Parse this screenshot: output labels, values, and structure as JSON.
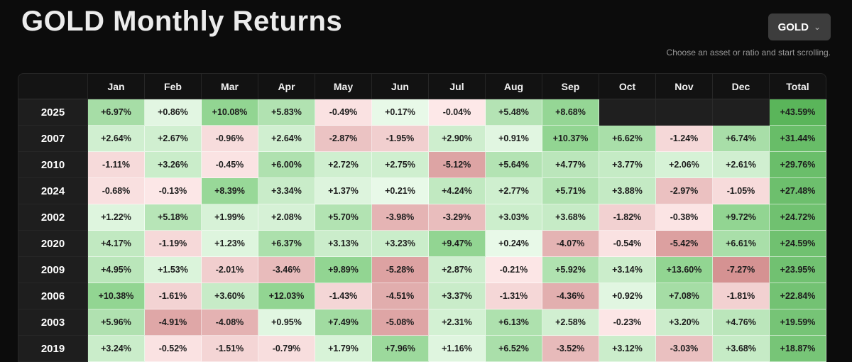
{
  "header": {
    "title": "GOLD Monthly Returns",
    "asset_selector": {
      "label": "GOLD",
      "chevron": "⌄"
    },
    "hint": "Choose an asset or ratio and start scrolling."
  },
  "table": {
    "columns": [
      "Jan",
      "Feb",
      "Mar",
      "Apr",
      "May",
      "Jun",
      "Jul",
      "Aug",
      "Sep",
      "Oct",
      "Nov",
      "Dec",
      "Total"
    ],
    "rows": [
      {
        "year": "2025",
        "cells": [
          "+6.97%",
          "+0.86%",
          "+10.08%",
          "+5.83%",
          "-0.49%",
          "+0.17%",
          "-0.04%",
          "+5.48%",
          "+8.68%",
          "",
          "",
          "",
          "+43.59%"
        ]
      },
      {
        "year": "2007",
        "cells": [
          "+2.64%",
          "+2.67%",
          "-0.96%",
          "+2.64%",
          "-2.87%",
          "-1.95%",
          "+2.90%",
          "+0.91%",
          "+10.37%",
          "+6.62%",
          "-1.24%",
          "+6.74%",
          "+31.44%"
        ]
      },
      {
        "year": "2010",
        "cells": [
          "-1.11%",
          "+3.26%",
          "-0.45%",
          "+6.00%",
          "+2.72%",
          "+2.75%",
          "-5.12%",
          "+5.64%",
          "+4.77%",
          "+3.77%",
          "+2.06%",
          "+2.61%",
          "+29.76%"
        ]
      },
      {
        "year": "2024",
        "cells": [
          "-0.68%",
          "-0.13%",
          "+8.39%",
          "+3.34%",
          "+1.37%",
          "+0.21%",
          "+4.24%",
          "+2.77%",
          "+5.71%",
          "+3.88%",
          "-2.97%",
          "-1.05%",
          "+27.48%"
        ]
      },
      {
        "year": "2002",
        "cells": [
          "+1.22%",
          "+5.18%",
          "+1.99%",
          "+2.08%",
          "+5.70%",
          "-3.98%",
          "-3.29%",
          "+3.03%",
          "+3.68%",
          "-1.82%",
          "-0.38%",
          "+9.72%",
          "+24.72%"
        ]
      },
      {
        "year": "2020",
        "cells": [
          "+4.17%",
          "-1.19%",
          "+1.23%",
          "+6.37%",
          "+3.13%",
          "+3.23%",
          "+9.47%",
          "+0.24%",
          "-4.07%",
          "-0.54%",
          "-5.42%",
          "+6.61%",
          "+24.59%"
        ]
      },
      {
        "year": "2009",
        "cells": [
          "+4.95%",
          "+1.53%",
          "-2.01%",
          "-3.46%",
          "+9.89%",
          "-5.28%",
          "+2.87%",
          "-0.21%",
          "+5.92%",
          "+3.14%",
          "+13.60%",
          "-7.27%",
          "+23.95%"
        ]
      },
      {
        "year": "2006",
        "cells": [
          "+10.38%",
          "-1.61%",
          "+3.60%",
          "+12.03%",
          "-1.43%",
          "-4.51%",
          "+3.37%",
          "-1.31%",
          "-4.36%",
          "+0.92%",
          "+7.08%",
          "-1.81%",
          "+22.84%"
        ]
      },
      {
        "year": "2003",
        "cells": [
          "+5.96%",
          "-4.91%",
          "-4.08%",
          "+0.95%",
          "+7.49%",
          "-5.08%",
          "+2.31%",
          "+6.13%",
          "+2.58%",
          "-0.23%",
          "+3.20%",
          "+4.76%",
          "+19.59%"
        ]
      },
      {
        "year": "2019",
        "cells": [
          "+3.24%",
          "-0.52%",
          "-1.51%",
          "-0.79%",
          "+1.79%",
          "+7.96%",
          "+1.16%",
          "+6.52%",
          "-3.52%",
          "+3.12%",
          "-3.03%",
          "+3.68%",
          "+18.87%"
        ]
      }
    ]
  },
  "colors": {
    "page_bg": "#0c0c0c",
    "button_bg": "#3d3d3d",
    "header_bg": "#121212",
    "year_bg": "#1e1e1e",
    "empty_cell": "#1f1f1f",
    "positive_light": "#eafaea",
    "positive_strong": "#92d592",
    "negative_light": "#fde9e9",
    "negative_strong": "#d59292",
    "total_light": "#7cc77c",
    "total_strong": "#58b458"
  }
}
